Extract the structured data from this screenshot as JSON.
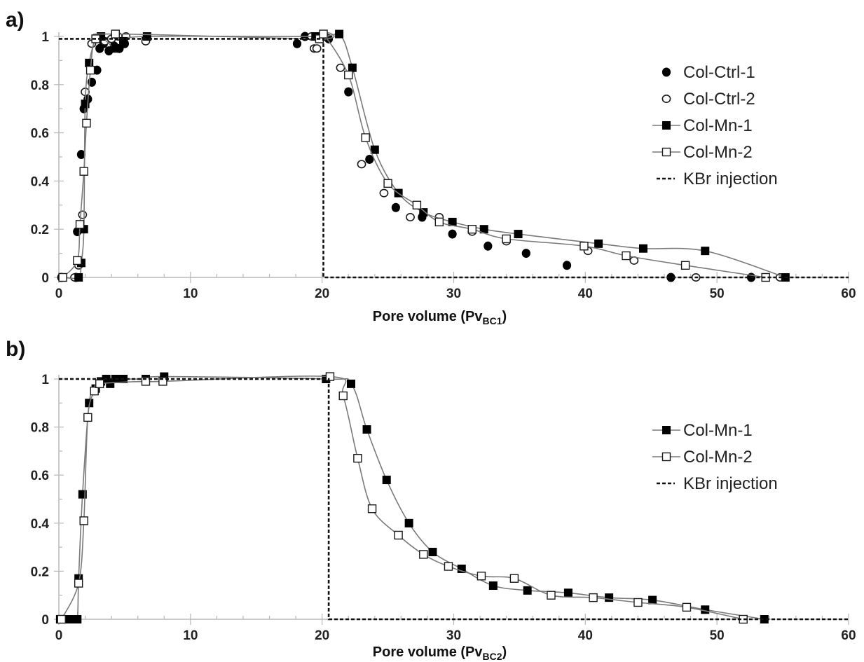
{
  "chart_data": [
    {
      "panel_label": "a)",
      "type": "scatter",
      "xlabel": "Pore volume (Pv",
      "xlabel_sub": "BC1",
      "xlabel_close": ")",
      "ylabel": "",
      "xlim": [
        0,
        60
      ],
      "ylim": [
        0,
        1
      ],
      "x_ticks": [
        "0",
        "10",
        "20",
        "30",
        "40",
        "50",
        "60"
      ],
      "y_ticks": [
        "0",
        "0.2",
        "0.4",
        "0.6",
        "0.8",
        "1"
      ],
      "grid": false,
      "legend_position": "right",
      "series": [
        {
          "name": "Col-Ctrl-1",
          "marker": "filled-circle",
          "line": false,
          "points": [
            [
              0.2,
              0
            ],
            [
              1.3,
              0
            ],
            [
              1.4,
              0.19
            ],
            [
              1.7,
              0.51
            ],
            [
              1.9,
              0.7
            ],
            [
              2.2,
              0.74
            ],
            [
              2.5,
              0.81
            ],
            [
              2.9,
              0.86
            ],
            [
              3.1,
              0.95
            ],
            [
              3.4,
              0.97
            ],
            [
              3.8,
              0.94
            ],
            [
              4.2,
              0.96
            ],
            [
              4.6,
              0.95
            ],
            [
              5.0,
              0.97
            ],
            [
              6.6,
              0.99
            ],
            [
              18.1,
              0.97
            ],
            [
              18.7,
              1.0
            ],
            [
              20.5,
              0.99
            ],
            [
              22.0,
              0.77
            ],
            [
              23.6,
              0.49
            ],
            [
              25.6,
              0.29
            ],
            [
              27.6,
              0.25
            ],
            [
              29.9,
              0.18
            ],
            [
              32.6,
              0.13
            ],
            [
              35.5,
              0.1
            ],
            [
              38.6,
              0.05
            ],
            [
              46.5,
              0.0
            ],
            [
              52.6,
              0.0
            ]
          ]
        },
        {
          "name": "Col-Ctrl-2",
          "marker": "open-circle",
          "line": false,
          "points": [
            [
              0.3,
              0
            ],
            [
              1.2,
              0
            ],
            [
              1.5,
              0.05
            ],
            [
              1.8,
              0.26
            ],
            [
              2.0,
              0.77
            ],
            [
              2.5,
              0.97
            ],
            [
              2.9,
              0.99
            ],
            [
              3.5,
              0.98
            ],
            [
              4.0,
              0.99
            ],
            [
              4.5,
              1.0
            ],
            [
              5.1,
              1.0
            ],
            [
              6.6,
              0.98
            ],
            [
              19.2,
              1.0
            ],
            [
              19.4,
              0.95
            ],
            [
              19.6,
              0.95
            ],
            [
              20.2,
              1.0
            ],
            [
              21.4,
              0.87
            ],
            [
              23.0,
              0.47
            ],
            [
              24.7,
              0.35
            ],
            [
              26.7,
              0.25
            ],
            [
              28.9,
              0.25
            ],
            [
              31.4,
              0.19
            ],
            [
              34.0,
              0.15
            ],
            [
              40.2,
              0.11
            ],
            [
              43.7,
              0.07
            ],
            [
              48.4,
              0.0
            ],
            [
              54.8,
              0.0
            ]
          ]
        },
        {
          "name": "Col-Mn-1",
          "marker": "filled-square",
          "line": true,
          "points": [
            [
              0.3,
              0
            ],
            [
              1.5,
              0
            ],
            [
              1.7,
              0.06
            ],
            [
              1.9,
              0.2
            ],
            [
              2.0,
              0.72
            ],
            [
              2.3,
              0.89
            ],
            [
              2.8,
              0.99
            ],
            [
              3.2,
              1.0
            ],
            [
              4.3,
              0.95
            ],
            [
              4.9,
              0.98
            ],
            [
              6.7,
              1.0
            ],
            [
              19.5,
              1.0
            ],
            [
              21.3,
              1.01
            ],
            [
              22.3,
              0.87
            ],
            [
              24.0,
              0.53
            ],
            [
              25.8,
              0.35
            ],
            [
              27.7,
              0.27
            ],
            [
              29.9,
              0.23
            ],
            [
              32.3,
              0.2
            ],
            [
              34.9,
              0.18
            ],
            [
              41.0,
              0.14
            ],
            [
              44.4,
              0.12
            ],
            [
              49.1,
              0.11
            ],
            [
              55.2,
              0.0
            ]
          ]
        },
        {
          "name": "Col-Mn-2",
          "marker": "open-square",
          "line": true,
          "points": [
            [
              0.3,
              0
            ],
            [
              1.4,
              0.07
            ],
            [
              1.6,
              0.22
            ],
            [
              1.9,
              0.44
            ],
            [
              2.1,
              0.64
            ],
            [
              2.4,
              0.86
            ],
            [
              2.8,
              0.99
            ],
            [
              4.3,
              1.01
            ],
            [
              19.8,
              0.99
            ],
            [
              20.1,
              1.01
            ],
            [
              22.0,
              0.84
            ],
            [
              23.3,
              0.58
            ],
            [
              25.0,
              0.39
            ],
            [
              27.2,
              0.3
            ],
            [
              28.9,
              0.23
            ],
            [
              31.4,
              0.2
            ],
            [
              34.0,
              0.16
            ],
            [
              39.9,
              0.13
            ],
            [
              43.1,
              0.09
            ],
            [
              47.6,
              0.05
            ],
            [
              53.7,
              0.0
            ]
          ]
        },
        {
          "name": "KBr injection",
          "marker": "none",
          "line": "dashed",
          "points": [
            [
              0,
              0.99
            ],
            [
              20.1,
              0.99
            ],
            [
              20.1,
              0
            ],
            [
              60,
              0
            ]
          ]
        }
      ]
    },
    {
      "panel_label": "b)",
      "type": "scatter",
      "xlabel": "Pore volume (Pv",
      "xlabel_sub": "BC2",
      "xlabel_close": ")",
      "ylabel": "",
      "xlim": [
        0,
        60
      ],
      "ylim": [
        0,
        1
      ],
      "x_ticks": [
        "0",
        "10",
        "20",
        "30",
        "40",
        "50",
        "60"
      ],
      "y_ticks": [
        "0",
        "0.2",
        "0.4",
        "0.6",
        "0.8",
        "1"
      ],
      "grid": false,
      "legend_position": "right",
      "series": [
        {
          "name": "Col-Mn-1",
          "marker": "filled-square",
          "line": true,
          "points": [
            [
              0.1,
              0
            ],
            [
              0.6,
              0
            ],
            [
              1.0,
              0
            ],
            [
              1.4,
              0
            ],
            [
              1.5,
              0.17
            ],
            [
              1.8,
              0.52
            ],
            [
              2.3,
              0.9
            ],
            [
              2.8,
              0.96
            ],
            [
              3.2,
              0.99
            ],
            [
              3.6,
              1.0
            ],
            [
              3.9,
              0.98
            ],
            [
              4.3,
              1.0
            ],
            [
              4.9,
              1.0
            ],
            [
              6.6,
              1.0
            ],
            [
              8.0,
              1.01
            ],
            [
              20.3,
              1.0
            ],
            [
              22.2,
              0.98
            ],
            [
              23.4,
              0.79
            ],
            [
              24.9,
              0.58
            ],
            [
              26.6,
              0.4
            ],
            [
              28.4,
              0.28
            ],
            [
              30.6,
              0.21
            ],
            [
              33.0,
              0.14
            ],
            [
              35.6,
              0.12
            ],
            [
              38.7,
              0.11
            ],
            [
              41.8,
              0.09
            ],
            [
              45.1,
              0.08
            ],
            [
              49.1,
              0.04
            ],
            [
              53.6,
              0.0
            ]
          ]
        },
        {
          "name": "Col-Mn-2",
          "marker": "open-square",
          "line": true,
          "points": [
            [
              0.2,
              0
            ],
            [
              1.5,
              0.15
            ],
            [
              1.9,
              0.41
            ],
            [
              2.2,
              0.84
            ],
            [
              2.7,
              0.95
            ],
            [
              3.1,
              0.98
            ],
            [
              6.6,
              0.99
            ],
            [
              7.9,
              0.99
            ],
            [
              20.6,
              1.01
            ],
            [
              21.6,
              0.93
            ],
            [
              22.7,
              0.67
            ],
            [
              23.8,
              0.46
            ],
            [
              25.8,
              0.35
            ],
            [
              27.7,
              0.27
            ],
            [
              29.6,
              0.22
            ],
            [
              32.1,
              0.18
            ],
            [
              34.6,
              0.17
            ],
            [
              37.4,
              0.1
            ],
            [
              40.6,
              0.09
            ],
            [
              44.0,
              0.07
            ],
            [
              47.7,
              0.05
            ],
            [
              52.0,
              0.0
            ]
          ]
        },
        {
          "name": "KBr injection",
          "marker": "none",
          "line": "dashed",
          "points": [
            [
              0,
              1.0
            ],
            [
              20.5,
              1.0
            ],
            [
              20.5,
              0
            ],
            [
              60,
              0
            ]
          ]
        }
      ]
    }
  ],
  "colors": {
    "filled": "#000000",
    "open_fill": "#ffffff",
    "marker_stroke": "#1a1a1a",
    "fit_line": "#7a7a7a",
    "axis": "#b9b9b9",
    "dashed": "#111111"
  }
}
